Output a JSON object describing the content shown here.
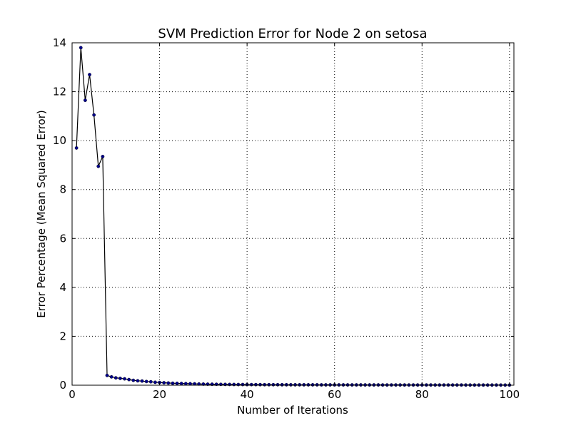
{
  "chart_data": {
    "type": "line",
    "title": "SVM Prediction Error for Node 2 on setosa",
    "xlabel": "Number of Iterations",
    "ylabel": "Error Percentage (Mean Squared Error)",
    "xlim": [
      0,
      101
    ],
    "ylim": [
      0,
      14
    ],
    "xticks": [
      0,
      20,
      40,
      60,
      80,
      100
    ],
    "yticks": [
      0,
      2,
      4,
      6,
      8,
      10,
      12,
      14
    ],
    "grid": true,
    "line_color": "#000000",
    "marker_color": "#00008b",
    "series": [
      {
        "x": [
          1,
          2,
          3,
          4,
          5,
          6,
          7,
          8,
          9,
          10,
          11,
          12,
          13,
          14,
          15,
          16,
          17,
          18,
          19,
          20,
          21,
          22,
          23,
          24,
          25,
          26,
          27,
          28,
          29,
          30,
          31,
          32,
          33,
          34,
          35,
          36,
          37,
          38,
          39,
          40,
          41,
          42,
          43,
          44,
          45,
          46,
          47,
          48,
          49,
          50,
          51,
          52,
          53,
          54,
          55,
          56,
          57,
          58,
          59,
          60,
          61,
          62,
          63,
          64,
          65,
          66,
          67,
          68,
          69,
          70,
          71,
          72,
          73,
          74,
          75,
          76,
          77,
          78,
          79,
          80,
          81,
          82,
          83,
          84,
          85,
          86,
          87,
          88,
          89,
          90,
          91,
          92,
          93,
          94,
          95,
          96,
          97,
          98,
          99,
          100
        ],
        "values": [
          9.7,
          13.8,
          11.65,
          12.7,
          11.05,
          8.95,
          9.35,
          0.4,
          0.34,
          0.3,
          0.28,
          0.26,
          0.23,
          0.2,
          0.18,
          0.17,
          0.15,
          0.14,
          0.12,
          0.11,
          0.1,
          0.09,
          0.08,
          0.075,
          0.07,
          0.065,
          0.06,
          0.055,
          0.05,
          0.046,
          0.043,
          0.04,
          0.037,
          0.035,
          0.033,
          0.031,
          0.029,
          0.027,
          0.026,
          0.025,
          0.024,
          0.023,
          0.022,
          0.021,
          0.02,
          0.02,
          0.019,
          0.018,
          0.018,
          0.017,
          0.017,
          0.016,
          0.016,
          0.015,
          0.015,
          0.015,
          0.014,
          0.014,
          0.014,
          0.013,
          0.013,
          0.013,
          0.012,
          0.012,
          0.012,
          0.012,
          0.011,
          0.011,
          0.011,
          0.011,
          0.01,
          0.01,
          0.01,
          0.01,
          0.01,
          0.01,
          0.009,
          0.009,
          0.009,
          0.009,
          0.009,
          0.009,
          0.008,
          0.008,
          0.008,
          0.008,
          0.008,
          0.008,
          0.008,
          0.007,
          0.007,
          0.007,
          0.007,
          0.007,
          0.007,
          0.007,
          0.007,
          0.006,
          0.006,
          0.006
        ]
      }
    ]
  }
}
